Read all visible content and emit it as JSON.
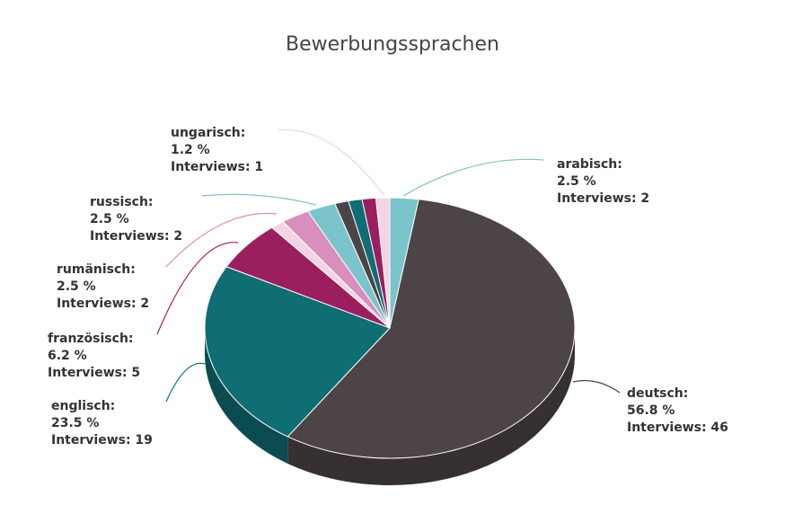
{
  "chart_data": {
    "type": "pie",
    "title": "Bewerbungssprachen",
    "categories": [
      "arabisch:",
      "deutsch:",
      "englisch:",
      "französisch:",
      null,
      "rumänisch:",
      "russisch:",
      null,
      null,
      null,
      "ungarisch:"
    ],
    "values": [
      2.5,
      56.8,
      23.5,
      6.2,
      1.2,
      2.5,
      2.5,
      1.2,
      1.2,
      1.2,
      1.2
    ],
    "value_labels": [
      "2.5 %",
      "56.8 %",
      "23.5 %",
      "6.2 %",
      null,
      "2.5 %",
      "2.5 %",
      null,
      null,
      null,
      "1.2 %"
    ],
    "interview_labels": [
      "Interviews: 2",
      "Interviews: 46",
      "Interviews: 19",
      "Interviews: 5",
      null,
      "Interviews: 2",
      "Interviews: 2",
      null,
      null,
      null,
      "Interviews: 1"
    ],
    "colors": [
      "#7cc4cb",
      "#4d4447",
      "#0f6d74",
      "#9b1f5f",
      "#f4d3e3",
      "#d98fbd",
      "#7cc4cb",
      "#4d4447",
      "#0f6d74",
      "#9b1f5f",
      "#f4d3e3"
    ]
  }
}
